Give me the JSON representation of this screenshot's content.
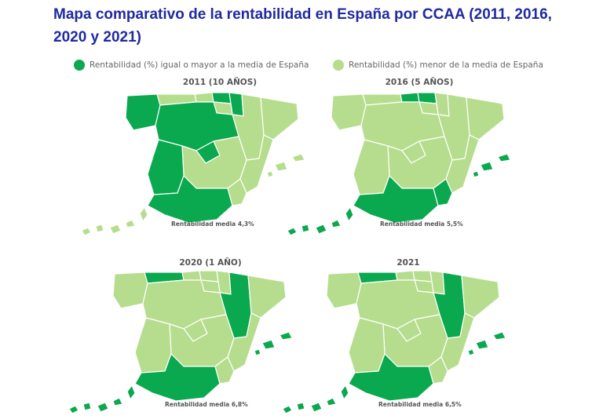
{
  "title": "Mapa comparativo de la rentabilidad en España por CCAA (2011, 2016, 2020 y 2021)",
  "legend": {
    "above_label": "Rentabilidad (%) igual o mayor a la media de España",
    "below_label": "Rentabilidad (%) menor de la media de España",
    "above_color": "#0aa84f",
    "below_color": "#b6dd8e"
  },
  "maps": [
    {
      "title": "2011 (10 AÑOS)",
      "caption": "Rentabilidad media 4,3%",
      "above_regions": [
        "galicia",
        "castilla-y-leon",
        "extremadura",
        "andalucia",
        "pais-vasco",
        "navarra",
        "madrid"
      ]
    },
    {
      "title": "2016 (5 AÑOS)",
      "caption": "Rentabilidad media 5,5%",
      "above_regions": [
        "andalucia",
        "murcia",
        "pais-vasco",
        "cantabria",
        "baleares",
        "canarias"
      ]
    },
    {
      "title": "2020 (1 AÑO)",
      "caption": "Rentabilidad media 6,8%",
      "above_regions": [
        "andalucia",
        "aragon",
        "asturias",
        "baleares",
        "canarias"
      ]
    },
    {
      "title": "2021",
      "caption": "Rentabilidad media 6,5%",
      "above_regions": [
        "andalucia",
        "aragon",
        "asturias",
        "baleares",
        "canarias"
      ]
    }
  ]
}
